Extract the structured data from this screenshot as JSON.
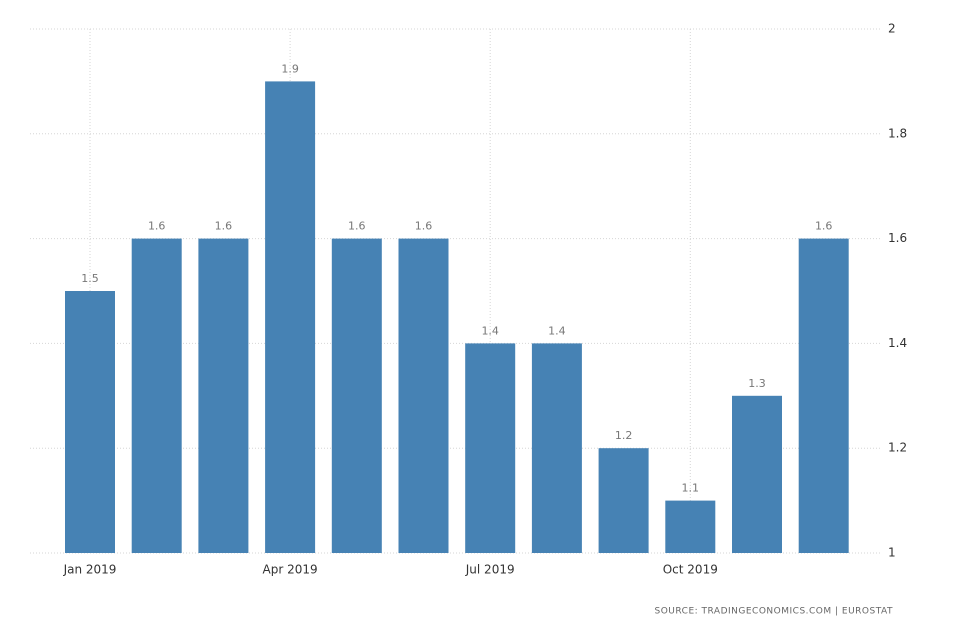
{
  "chart_data": {
    "type": "bar",
    "categories": [
      "Jan 2019",
      null,
      null,
      "Apr 2019",
      null,
      null,
      "Jul 2019",
      null,
      null,
      "Oct 2019",
      null,
      null
    ],
    "values": [
      1.5,
      1.6,
      1.6,
      1.9,
      1.6,
      1.6,
      1.4,
      1.4,
      1.2,
      1.1,
      1.3,
      1.6
    ],
    "color": "#4682b4",
    "ylim": [
      1,
      2
    ],
    "yticks": [
      1,
      1.2,
      1.4,
      1.6,
      1.8,
      2
    ],
    "grid": true,
    "source": "SOURCE: TRADINGECONOMICS.COM | EUROSTAT"
  }
}
